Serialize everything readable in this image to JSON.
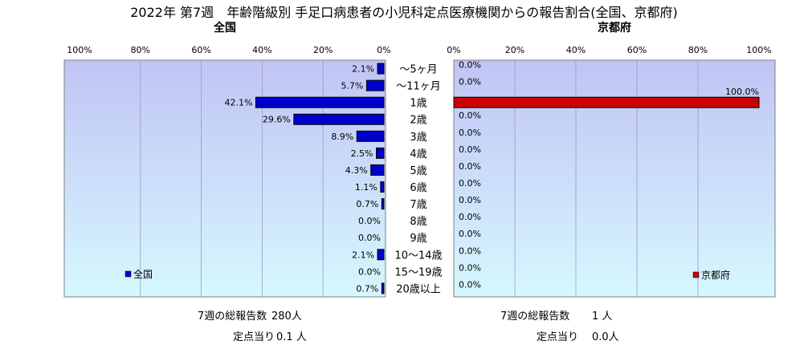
{
  "title": "2022年 第7週　年齢階級別 手足口病患者の小児科定点医療機関からの報告割合(全国、京都府)",
  "colors": {
    "national": "#0000cc",
    "kyoto": "#cc0000"
  },
  "chart_data": [
    {
      "type": "bar",
      "orientation": "horizontal",
      "title": "全国",
      "categories": [
        "～5ヶ月",
        "～11ヶ月",
        "1歳",
        "2歳",
        "3歳",
        "4歳",
        "5歳",
        "6歳",
        "7歳",
        "8歳",
        "9歳",
        "10～14歳",
        "15～19歳",
        "20歳以上"
      ],
      "series": [
        {
          "name": "全国",
          "values": [
            2.1,
            5.7,
            42.1,
            29.6,
            8.9,
            2.5,
            4.3,
            1.1,
            0.7,
            0.0,
            0.0,
            2.1,
            0.0,
            0.7
          ]
        }
      ],
      "labels": [
        "2.1%",
        "5.7%",
        "42.1%",
        "29.6%",
        "8.9%",
        "2.5%",
        "4.3%",
        "1.1%",
        "0.7%",
        "0.0%",
        "0.0%",
        "2.1%",
        "0.0%",
        "0.7%"
      ],
      "xlim": [
        0,
        100
      ],
      "x_reversed": true,
      "ticks": [
        "100%",
        "80%",
        "60%",
        "40%",
        "20%",
        "0%"
      ],
      "legend": "left"
    },
    {
      "type": "bar",
      "orientation": "horizontal",
      "title": "京都府",
      "categories": [
        "～5ヶ月",
        "～11ヶ月",
        "1歳",
        "2歳",
        "3歳",
        "4歳",
        "5歳",
        "6歳",
        "7歳",
        "8歳",
        "9歳",
        "10～14歳",
        "15～19歳",
        "20歳以上"
      ],
      "series": [
        {
          "name": "京都府",
          "values": [
            0.0,
            0.0,
            100.0,
            0.0,
            0.0,
            0.0,
            0.0,
            0.0,
            0.0,
            0.0,
            0.0,
            0.0,
            0.0,
            0.0
          ]
        }
      ],
      "labels": [
        "0.0%",
        "0.0%",
        "100.0%",
        "0.0%",
        "0.0%",
        "0.0%",
        "0.0%",
        "0.0%",
        "0.0%",
        "0.0%",
        "0.0%",
        "0.0%",
        "0.0%",
        "0.0%"
      ],
      "xlim": [
        0,
        100
      ],
      "ticks": [
        "0%",
        "20%",
        "40%",
        "60%",
        "80%",
        "100%"
      ],
      "legend": "right"
    }
  ],
  "stats": {
    "national": {
      "total_label": "7週の総報告数",
      "total_value": "280人",
      "per_label": "定点当り",
      "per_value": "0.1 人"
    },
    "kyoto": {
      "total_label": "7週の総報告数",
      "total_value": "1 人",
      "per_label": "定点当り",
      "per_value": "0.0人"
    }
  }
}
